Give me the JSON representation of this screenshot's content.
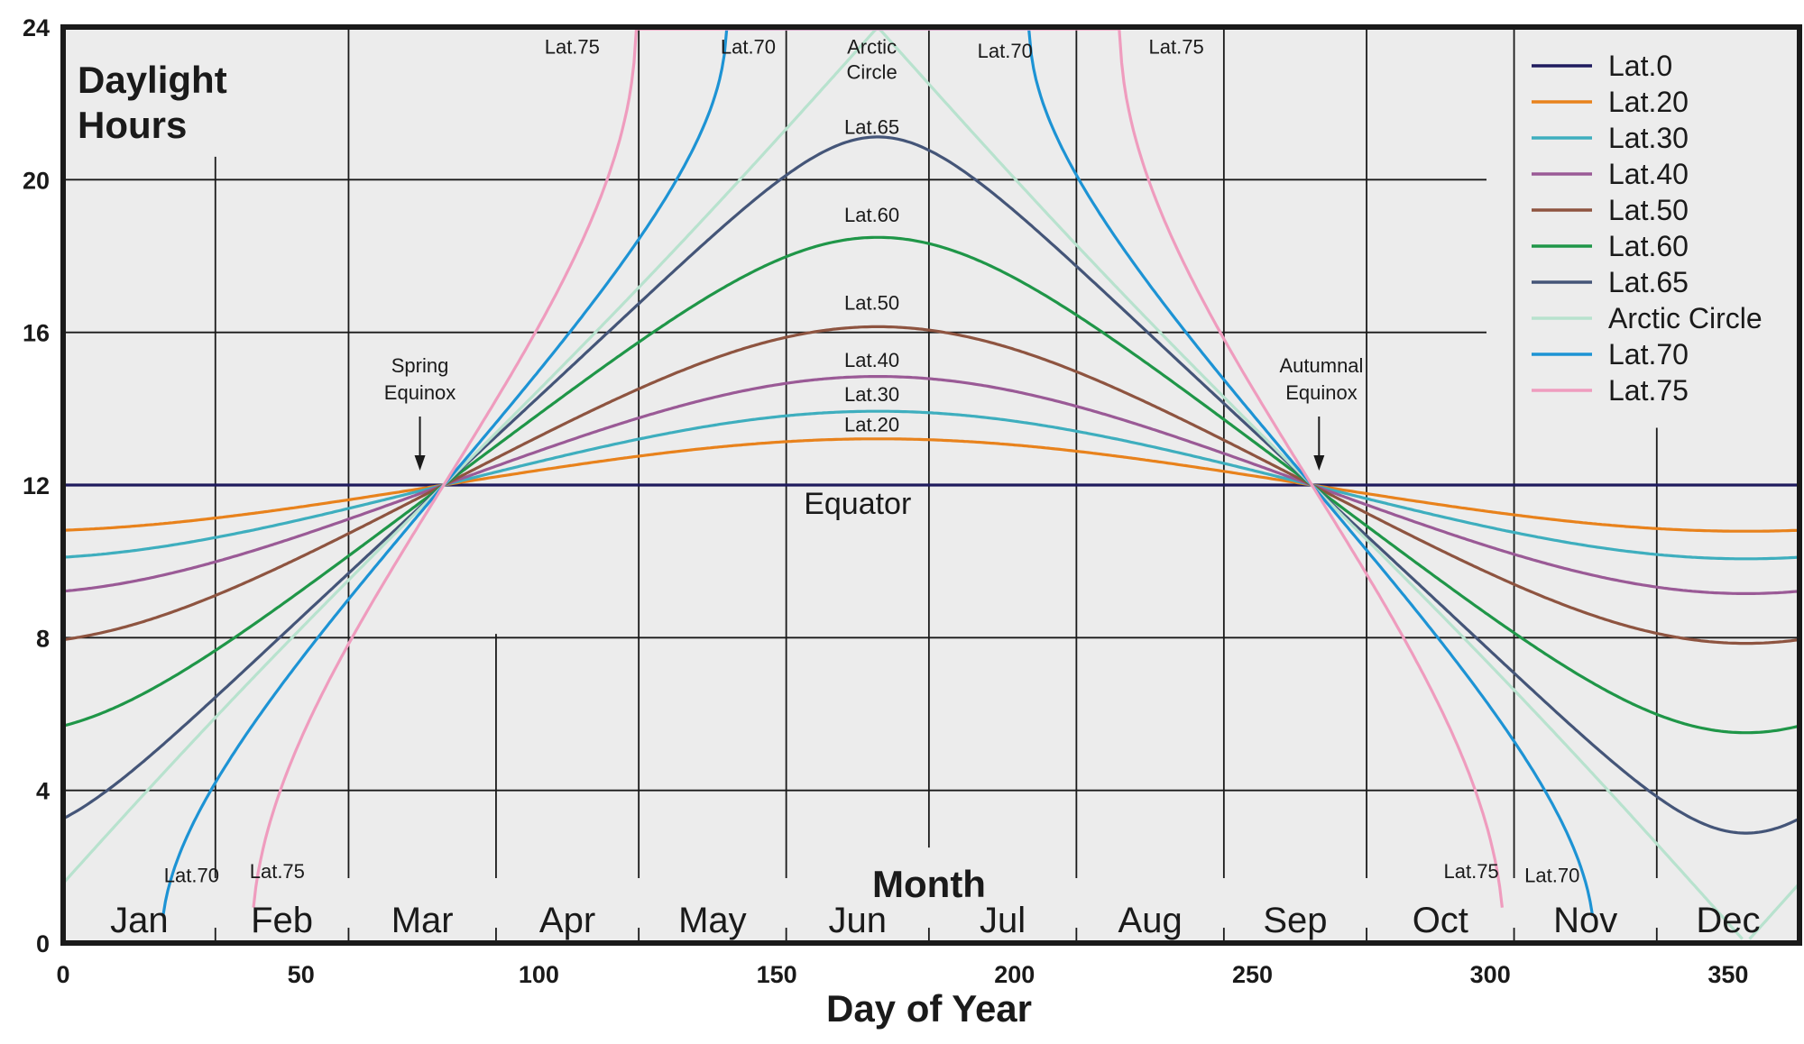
{
  "chart_data": {
    "type": "line",
    "ylabel": "Daylight\nHours",
    "xlabel": "Day of Year",
    "month_axis_label": "Month",
    "xlim": [
      0,
      365
    ],
    "ylim": [
      0,
      24
    ],
    "x_ticks": [
      0,
      50,
      100,
      150,
      200,
      250,
      300,
      350
    ],
    "y_ticks": [
      0,
      4,
      8,
      12,
      16,
      20,
      24
    ],
    "months": [
      "Jan",
      "Feb",
      "Mar",
      "Apr",
      "May",
      "Jun",
      "Jul",
      "Aug",
      "Sep",
      "Oct",
      "Nov",
      "Dec"
    ],
    "month_boundaries": [
      32,
      60,
      91,
      121,
      152,
      182,
      213,
      244,
      274,
      305,
      335
    ],
    "grid": true,
    "legend_position": "top-right",
    "series": [
      {
        "name": "Lat.0",
        "latitude": 0,
        "color": "#1f1b5e"
      },
      {
        "name": "Lat.20",
        "latitude": 20,
        "color": "#e8821c"
      },
      {
        "name": "Lat.30",
        "latitude": 30,
        "color": "#3eaebe"
      },
      {
        "name": "Lat.40",
        "latitude": 40,
        "color": "#9a5a96"
      },
      {
        "name": "Lat.50",
        "latitude": 50,
        "color": "#8e5440"
      },
      {
        "name": "Lat.60",
        "latitude": 60,
        "color": "#1f9648"
      },
      {
        "name": "Lat.65",
        "latitude": 65,
        "color": "#445578"
      },
      {
        "name": "Arctic Circle",
        "latitude": 66.56,
        "color": "#b8e2ce"
      },
      {
        "name": "Lat.70",
        "latitude": 70,
        "color": "#1d93d4"
      },
      {
        "name": "Lat.75",
        "latitude": 75,
        "color": "#ef9cbe"
      }
    ],
    "annotations": {
      "spring_equinox": "Spring\nEquinox",
      "autumnal_equinox": "Autumnal\nEquinox",
      "equator": "Equator",
      "curve_labels": [
        {
          "text": "Lat.75",
          "x": 107,
          "y": 23.3
        },
        {
          "text": "Lat.70",
          "x": 144,
          "y": 23.3
        },
        {
          "text": "Arctic\nCircle",
          "x": 170,
          "y": 23.3
        },
        {
          "text": "Lat.70",
          "x": 198,
          "y": 23.2
        },
        {
          "text": "Lat.75",
          "x": 234,
          "y": 23.3
        },
        {
          "text": "Lat.65",
          "x": 170,
          "y": 21.2
        },
        {
          "text": "Lat.60",
          "x": 170,
          "y": 18.9
        },
        {
          "text": "Lat.50",
          "x": 170,
          "y": 16.6
        },
        {
          "text": "Lat.40",
          "x": 170,
          "y": 15.1
        },
        {
          "text": "Lat.30",
          "x": 170,
          "y": 14.2
        },
        {
          "text": "Lat.20",
          "x": 170,
          "y": 13.4
        },
        {
          "text": "Lat.70",
          "x": 27,
          "y": 1.6
        },
        {
          "text": "Lat.75",
          "x": 45,
          "y": 1.7
        },
        {
          "text": "Lat.75",
          "x": 296,
          "y": 1.7
        },
        {
          "text": "Lat.70",
          "x": 313,
          "y": 1.6
        }
      ]
    }
  }
}
